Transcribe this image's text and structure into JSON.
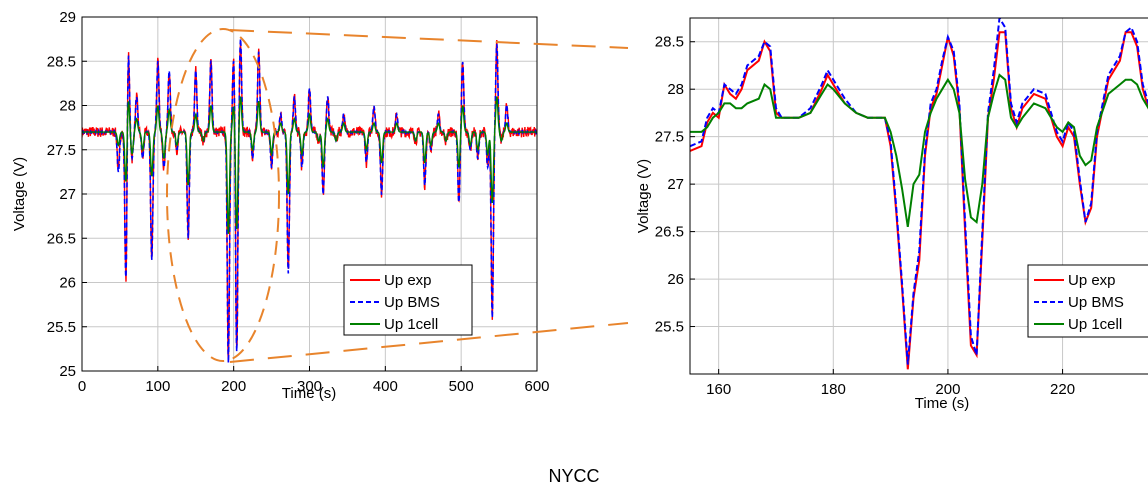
{
  "figure": {
    "caption": "NYCC",
    "colors": {
      "exp": "#ff0000",
      "bms": "#0000ff",
      "onecell": "#008000",
      "zoom": "#e8842c",
      "grid": "#c8c8c8",
      "axis": "#000000"
    }
  },
  "chart_data": [
    {
      "type": "line",
      "xlabel": "Time (s)",
      "ylabel": "Voltage (V)",
      "xlim": [
        0,
        600
      ],
      "ylim": [
        25,
        29
      ],
      "xticks": [
        0,
        100,
        200,
        300,
        400,
        500,
        600
      ],
      "yticks": [
        25,
        25.5,
        26,
        26.5,
        27,
        27.5,
        28,
        28.5,
        29
      ],
      "grid": true,
      "legend_position": "bottom-right",
      "series": [
        {
          "name": "Up exp",
          "color": "#ff0000",
          "style": "solid",
          "baseline": 27.7,
          "noise": 0.06
        },
        {
          "name": "Up BMS",
          "color": "#0000ff",
          "style": "dashed",
          "baseline": 27.7,
          "noise": 0.01
        },
        {
          "name": "Up 1cell",
          "color": "#008000",
          "style": "solid",
          "baseline": 27.7,
          "noise": 0.0
        }
      ],
      "events": [
        [
          48,
          27.25,
          27.55
        ],
        [
          58,
          25.95,
          27.1
        ],
        [
          61,
          28.7,
          28.1
        ],
        [
          66,
          27.4,
          27.45
        ],
        [
          72,
          28.1,
          27.85
        ],
        [
          80,
          27.4,
          27.5
        ],
        [
          92,
          26.25,
          27.2
        ],
        [
          100,
          28.5,
          28.0
        ],
        [
          108,
          27.3,
          27.4
        ],
        [
          115,
          28.4,
          27.95
        ],
        [
          125,
          27.5,
          27.55
        ],
        [
          140,
          26.5,
          27.1
        ],
        [
          150,
          28.4,
          27.9
        ],
        [
          160,
          27.6,
          27.6
        ],
        [
          170,
          28.5,
          28.0
        ],
        [
          180,
          27.7,
          27.7
        ],
        [
          193,
          25.1,
          26.55
        ],
        [
          200,
          28.55,
          28.0
        ],
        [
          204,
          25.2,
          26.6
        ],
        [
          209,
          28.75,
          28.1
        ],
        [
          225,
          27.4,
          27.5
        ],
        [
          233,
          28.6,
          28.05
        ],
        [
          250,
          27.3,
          27.45
        ],
        [
          262,
          27.9,
          27.8
        ],
        [
          272,
          26.1,
          27.0
        ],
        [
          280,
          28.1,
          27.85
        ],
        [
          290,
          27.3,
          27.45
        ],
        [
          300,
          28.2,
          27.9
        ],
        [
          312,
          27.6,
          27.6
        ],
        [
          318,
          27.0,
          27.3
        ],
        [
          324,
          28.1,
          27.85
        ],
        [
          335,
          27.6,
          27.6
        ],
        [
          345,
          27.9,
          27.8
        ],
        [
          375,
          27.35,
          27.5
        ],
        [
          385,
          28.0,
          27.8
        ],
        [
          395,
          27.0,
          27.35
        ],
        [
          405,
          27.7,
          27.7
        ],
        [
          415,
          27.9,
          27.8
        ],
        [
          440,
          27.6,
          27.6
        ],
        [
          452,
          27.1,
          27.35
        ],
        [
          460,
          27.5,
          27.55
        ],
        [
          470,
          27.9,
          27.8
        ],
        [
          480,
          27.6,
          27.6
        ],
        [
          497,
          26.9,
          27.3
        ],
        [
          502,
          28.5,
          28.0
        ],
        [
          512,
          27.5,
          27.55
        ],
        [
          522,
          27.4,
          27.5
        ],
        [
          535,
          27.3,
          27.45
        ],
        [
          541,
          25.6,
          26.9
        ],
        [
          547,
          28.7,
          28.1
        ],
        [
          553,
          27.6,
          27.6
        ],
        [
          560,
          28.0,
          27.8
        ]
      ]
    },
    {
      "type": "line",
      "xlabel": "Time (s)",
      "ylabel": "Voltage (V)",
      "xlim": [
        155,
        237
      ],
      "ylim": [
        25,
        28.75
      ],
      "xticks": [
        160,
        180,
        200,
        220
      ],
      "yticks": [
        25.5,
        26,
        26.5,
        27,
        27.5,
        28,
        28.5
      ],
      "grid": true,
      "legend_position": "bottom-right",
      "series": [
        {
          "name": "Up exp",
          "color": "#ff0000",
          "style": "solid",
          "x": [
            155,
            157,
            158,
            159,
            160,
            161,
            162,
            163,
            164,
            165,
            167,
            168,
            169,
            170,
            171,
            172,
            174,
            176,
            178,
            179,
            180,
            182,
            184,
            186,
            188,
            189,
            190,
            191,
            192,
            193,
            194,
            195,
            196,
            197,
            198,
            199,
            200,
            201,
            202,
            203,
            204,
            205,
            206,
            207,
            208,
            209,
            210,
            211,
            212,
            213,
            215,
            217,
            219,
            220,
            221,
            222,
            223,
            224,
            225,
            226,
            228,
            230,
            231,
            232,
            233,
            234,
            235,
            236,
            237
          ],
          "y": [
            27.35,
            27.4,
            27.65,
            27.75,
            27.7,
            28.05,
            27.95,
            27.9,
            28.0,
            28.2,
            28.3,
            28.5,
            28.4,
            27.75,
            27.7,
            27.7,
            27.7,
            27.75,
            28.0,
            28.15,
            28.05,
            27.85,
            27.75,
            27.7,
            27.7,
            27.7,
            27.4,
            26.7,
            25.9,
            25.05,
            25.8,
            26.2,
            27.3,
            27.8,
            27.95,
            28.25,
            28.55,
            28.35,
            27.8,
            26.5,
            25.3,
            25.2,
            26.4,
            27.7,
            28.1,
            28.6,
            28.6,
            27.8,
            27.6,
            27.8,
            27.95,
            27.9,
            27.5,
            27.4,
            27.6,
            27.5,
            27.0,
            26.6,
            26.75,
            27.5,
            28.1,
            28.3,
            28.6,
            28.6,
            28.45,
            28.0,
            27.8,
            27.65,
            27.7
          ]
        },
        {
          "name": "Up BMS",
          "color": "#0000ff",
          "style": "dashed",
          "x": [
            155,
            157,
            158,
            159,
            160,
            161,
            162,
            163,
            164,
            165,
            167,
            168,
            169,
            170,
            171,
            172,
            174,
            176,
            178,
            179,
            180,
            182,
            184,
            186,
            188,
            189,
            190,
            191,
            192,
            193,
            194,
            195,
            196,
            197,
            198,
            199,
            200,
            201,
            202,
            203,
            204,
            205,
            206,
            207,
            208,
            209,
            210,
            211,
            212,
            213,
            215,
            217,
            219,
            220,
            221,
            222,
            223,
            224,
            225,
            226,
            228,
            230,
            231,
            232,
            233,
            234,
            235,
            236,
            237
          ],
          "y": [
            27.4,
            27.45,
            27.7,
            27.8,
            27.75,
            28.05,
            28.0,
            27.95,
            28.05,
            28.25,
            28.35,
            28.5,
            28.45,
            27.8,
            27.7,
            27.7,
            27.7,
            27.8,
            28.05,
            28.2,
            28.1,
            27.9,
            27.75,
            27.7,
            27.7,
            27.7,
            27.45,
            26.75,
            25.95,
            25.1,
            25.85,
            26.3,
            27.35,
            27.85,
            28.0,
            28.3,
            28.55,
            28.4,
            27.85,
            26.6,
            25.4,
            25.2,
            26.5,
            27.75,
            28.2,
            28.75,
            28.65,
            27.85,
            27.65,
            27.85,
            28.0,
            27.95,
            27.55,
            27.45,
            27.65,
            27.55,
            27.05,
            26.6,
            26.8,
            27.55,
            28.15,
            28.35,
            28.6,
            28.65,
            28.5,
            28.05,
            27.85,
            27.7,
            27.75
          ]
        },
        {
          "name": "Up 1cell",
          "color": "#008000",
          "style": "solid",
          "x": [
            155,
            157,
            158,
            159,
            160,
            161,
            162,
            163,
            164,
            165,
            167,
            168,
            169,
            170,
            171,
            172,
            174,
            176,
            178,
            179,
            180,
            182,
            184,
            186,
            188,
            189,
            190,
            191,
            192,
            193,
            194,
            195,
            196,
            197,
            198,
            199,
            200,
            201,
            202,
            203,
            204,
            205,
            206,
            207,
            208,
            209,
            210,
            211,
            212,
            213,
            215,
            217,
            219,
            220,
            221,
            222,
            223,
            224,
            225,
            226,
            228,
            230,
            231,
            232,
            233,
            234,
            235,
            236,
            237
          ],
          "y": [
            27.55,
            27.55,
            27.6,
            27.7,
            27.75,
            27.85,
            27.85,
            27.8,
            27.8,
            27.85,
            27.9,
            28.05,
            28.0,
            27.7,
            27.7,
            27.7,
            27.7,
            27.75,
            27.95,
            28.05,
            28.0,
            27.85,
            27.75,
            27.7,
            27.7,
            27.7,
            27.55,
            27.3,
            26.95,
            26.55,
            27.0,
            27.1,
            27.55,
            27.75,
            27.9,
            28.0,
            28.1,
            28.0,
            27.75,
            27.05,
            26.65,
            26.6,
            27.0,
            27.7,
            27.95,
            28.15,
            28.1,
            27.7,
            27.6,
            27.7,
            27.85,
            27.8,
            27.6,
            27.55,
            27.65,
            27.6,
            27.3,
            27.2,
            27.25,
            27.6,
            27.95,
            28.05,
            28.1,
            28.1,
            28.05,
            27.9,
            27.8,
            27.7,
            27.7
          ]
        }
      ]
    }
  ]
}
